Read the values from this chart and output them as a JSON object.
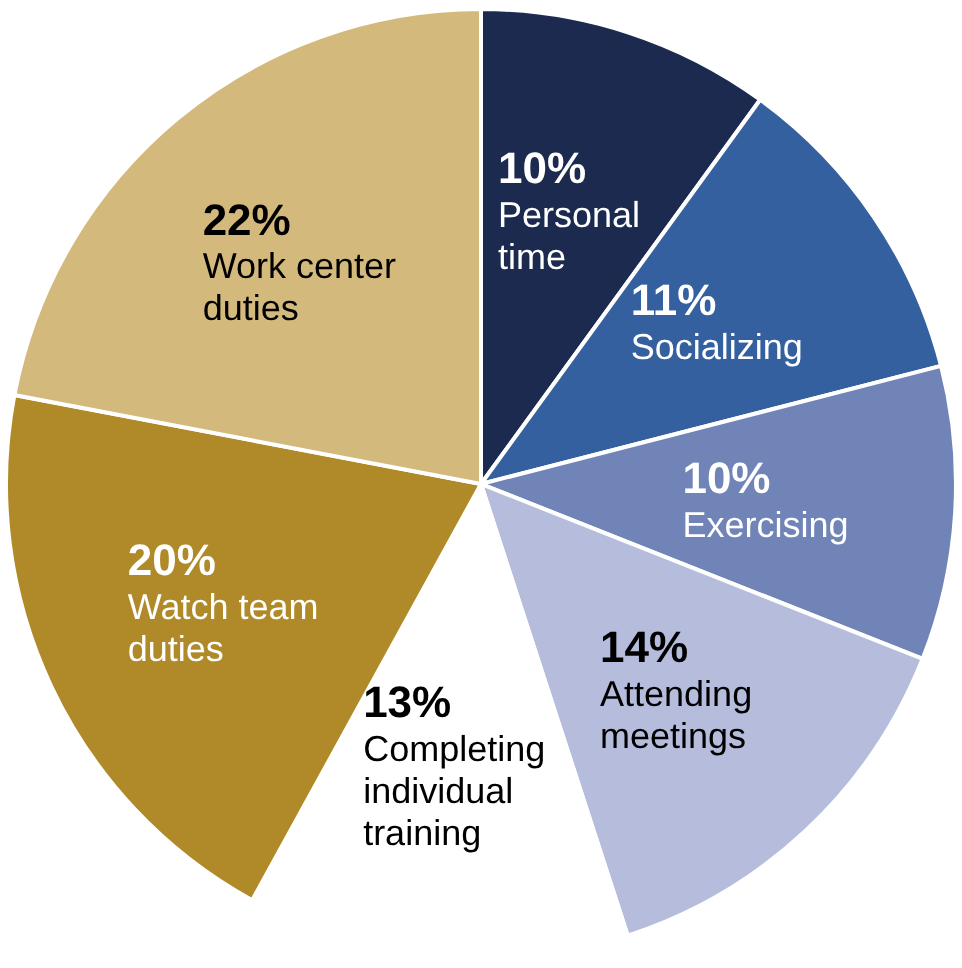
{
  "chart_data": {
    "type": "pie",
    "categories": [
      "Personal time",
      "Socializing",
      "Exercising",
      "Attending meetings",
      "Completing individual training",
      "Watch team duties",
      "Work center duties"
    ],
    "values": [
      10,
      11,
      10,
      14,
      13,
      20,
      22
    ],
    "colors": [
      "#1b2a4e",
      "#3560a0",
      "#7184b8",
      "#b6bcdc",
      "#ffffff",
      "#b08a28",
      "#d4b97c"
    ],
    "value_labels": [
      "10%",
      "11%",
      "10%",
      "14%",
      "13%",
      "20%",
      "22%"
    ],
    "legend": false
  }
}
